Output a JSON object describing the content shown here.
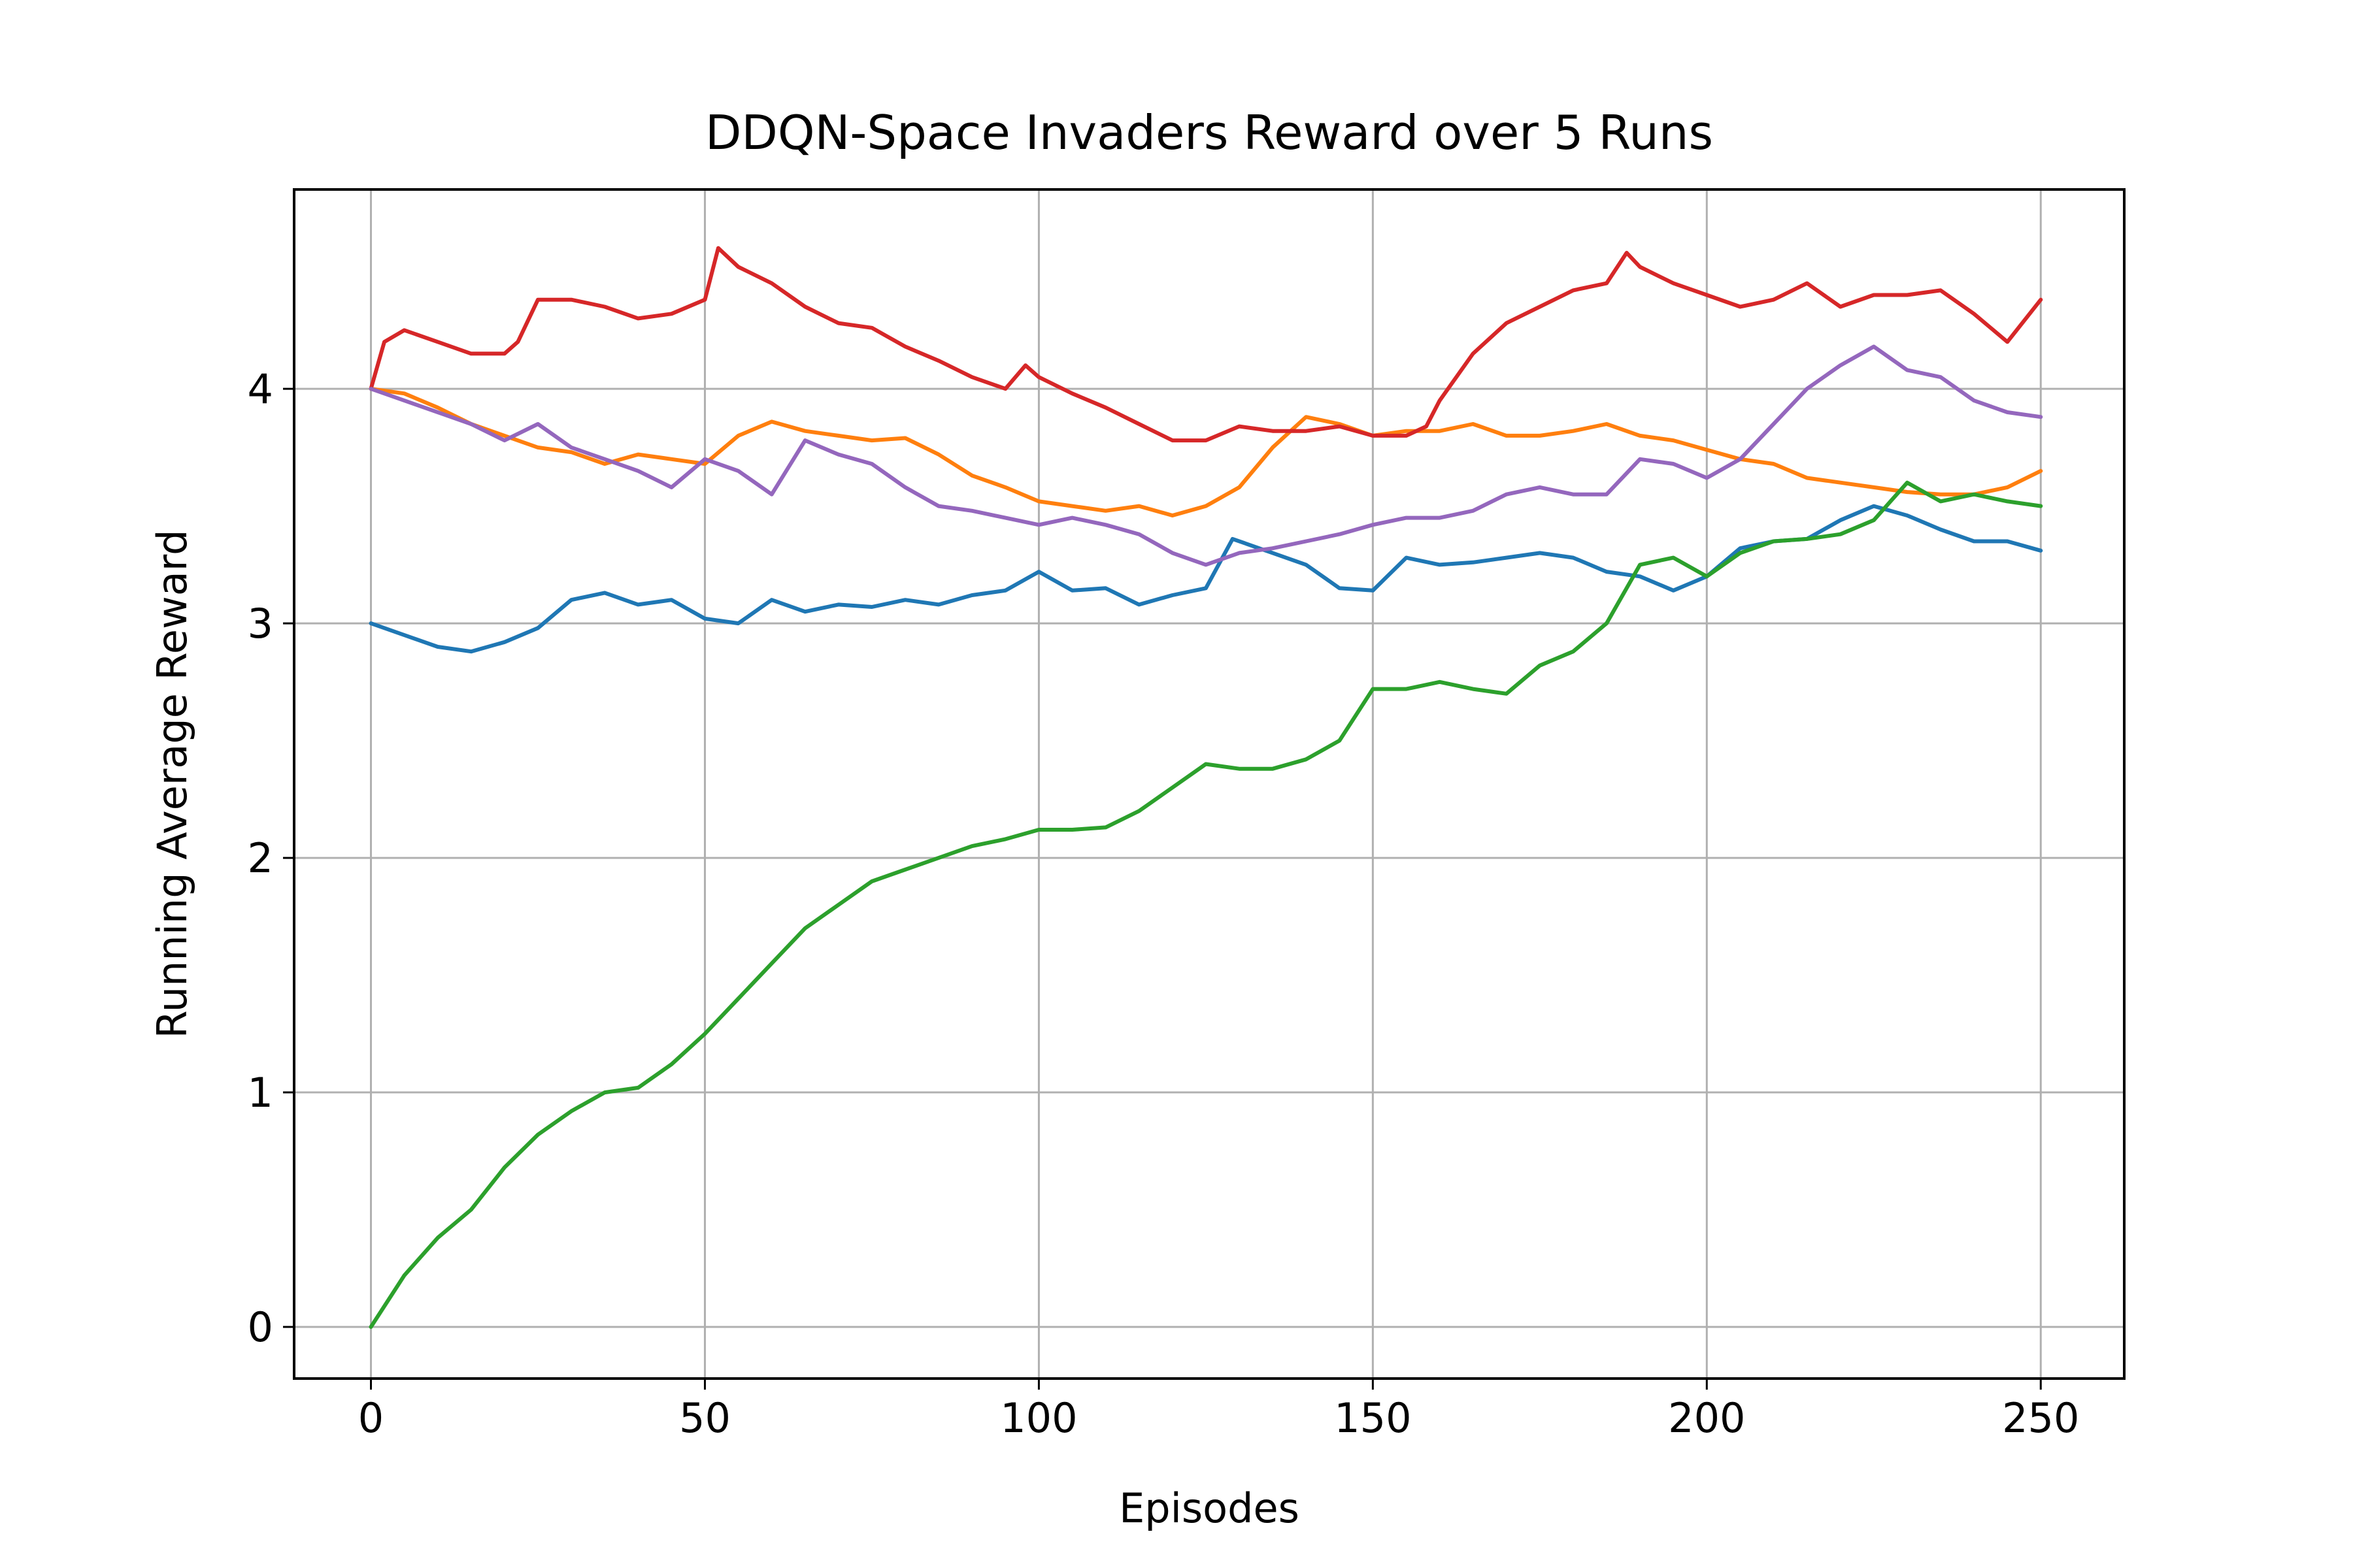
{
  "chart_data": {
    "type": "line",
    "title": "DDQN-Space Invaders Reward over 5 Runs",
    "xlabel": "Episodes",
    "ylabel": "Running Average Reward",
    "xlim": [
      -11.5,
      262.5
    ],
    "ylim": [
      -0.22,
      4.85
    ],
    "xticks": [
      0,
      50,
      100,
      150,
      200,
      250
    ],
    "yticks": [
      0,
      1,
      2,
      3,
      4
    ],
    "grid": true,
    "legend": "none",
    "series": [
      {
        "color": "#1f77b4",
        "x": [
          0,
          5,
          10,
          15,
          20,
          25,
          30,
          35,
          40,
          45,
          50,
          55,
          60,
          65,
          70,
          75,
          80,
          85,
          90,
          95,
          100,
          105,
          110,
          115,
          120,
          125,
          129,
          135,
          140,
          145,
          150,
          155,
          160,
          165,
          170,
          175,
          180,
          185,
          190,
          195,
          200,
          205,
          210,
          215,
          220,
          225,
          230,
          235,
          240,
          245,
          250
        ],
        "y": [
          3.0,
          2.95,
          2.9,
          2.88,
          2.92,
          2.98,
          3.1,
          3.13,
          3.08,
          3.1,
          3.02,
          3.0,
          3.1,
          3.05,
          3.08,
          3.07,
          3.1,
          3.08,
          3.12,
          3.14,
          3.22,
          3.14,
          3.15,
          3.08,
          3.12,
          3.15,
          3.36,
          3.3,
          3.25,
          3.15,
          3.14,
          3.28,
          3.25,
          3.26,
          3.28,
          3.3,
          3.28,
          3.22,
          3.2,
          3.14,
          3.2,
          3.32,
          3.35,
          3.36,
          3.44,
          3.5,
          3.46,
          3.4,
          3.35,
          3.35,
          3.31
        ]
      },
      {
        "color": "#ff7f0e",
        "x": [
          0,
          5,
          10,
          15,
          20,
          25,
          30,
          35,
          40,
          45,
          50,
          55,
          60,
          65,
          70,
          75,
          80,
          85,
          90,
          95,
          100,
          105,
          110,
          115,
          120,
          125,
          130,
          135,
          140,
          145,
          150,
          155,
          160,
          165,
          170,
          175,
          180,
          185,
          190,
          195,
          200,
          205,
          210,
          215,
          220,
          225,
          230,
          235,
          240,
          245,
          250
        ],
        "y": [
          4.0,
          3.98,
          3.92,
          3.85,
          3.8,
          3.75,
          3.73,
          3.68,
          3.72,
          3.7,
          3.68,
          3.8,
          3.86,
          3.82,
          3.8,
          3.78,
          3.79,
          3.72,
          3.63,
          3.58,
          3.52,
          3.5,
          3.48,
          3.5,
          3.46,
          3.5,
          3.58,
          3.75,
          3.88,
          3.85,
          3.8,
          3.82,
          3.82,
          3.85,
          3.8,
          3.8,
          3.82,
          3.85,
          3.8,
          3.78,
          3.74,
          3.7,
          3.68,
          3.62,
          3.6,
          3.58,
          3.56,
          3.55,
          3.55,
          3.58,
          3.65
        ]
      },
      {
        "color": "#2ca02c",
        "x": [
          0,
          5,
          10,
          15,
          20,
          25,
          30,
          35,
          40,
          45,
          50,
          55,
          60,
          65,
          70,
          75,
          80,
          85,
          90,
          95,
          100,
          105,
          110,
          115,
          120,
          125,
          130,
          135,
          140,
          145,
          150,
          155,
          160,
          165,
          170,
          175,
          180,
          185,
          190,
          195,
          200,
          205,
          210,
          215,
          220,
          225,
          230,
          235,
          240,
          245,
          250
        ],
        "y": [
          0.0,
          0.22,
          0.38,
          0.5,
          0.68,
          0.82,
          0.92,
          1.0,
          1.02,
          1.12,
          1.25,
          1.4,
          1.55,
          1.7,
          1.8,
          1.9,
          1.95,
          2.0,
          2.05,
          2.08,
          2.12,
          2.12,
          2.13,
          2.2,
          2.3,
          2.4,
          2.38,
          2.38,
          2.42,
          2.5,
          2.72,
          2.72,
          2.75,
          2.72,
          2.7,
          2.82,
          2.88,
          3.0,
          3.25,
          3.28,
          3.2,
          3.3,
          3.35,
          3.36,
          3.38,
          3.44,
          3.6,
          3.52,
          3.55,
          3.52,
          3.5
        ]
      },
      {
        "color": "#d62728",
        "x": [
          0,
          2,
          5,
          10,
          15,
          20,
          22,
          25,
          30,
          35,
          40,
          45,
          50,
          52,
          55,
          60,
          65,
          70,
          75,
          80,
          85,
          90,
          95,
          98,
          100,
          105,
          110,
          115,
          120,
          125,
          130,
          135,
          140,
          145,
          150,
          155,
          158,
          160,
          165,
          170,
          175,
          180,
          185,
          188,
          190,
          195,
          200,
          205,
          210,
          215,
          220,
          225,
          230,
          235,
          240,
          245,
          250
        ],
        "y": [
          4.0,
          4.2,
          4.25,
          4.2,
          4.15,
          4.15,
          4.2,
          4.38,
          4.38,
          4.35,
          4.3,
          4.32,
          4.38,
          4.6,
          4.52,
          4.45,
          4.35,
          4.28,
          4.26,
          4.18,
          4.12,
          4.05,
          4.0,
          4.1,
          4.05,
          3.98,
          3.92,
          3.85,
          3.78,
          3.78,
          3.84,
          3.82,
          3.82,
          3.84,
          3.8,
          3.8,
          3.84,
          3.95,
          4.15,
          4.28,
          4.35,
          4.42,
          4.45,
          4.58,
          4.52,
          4.45,
          4.4,
          4.35,
          4.38,
          4.45,
          4.35,
          4.4,
          4.4,
          4.42,
          4.32,
          4.2,
          4.38
        ]
      },
      {
        "color": "#9467bd",
        "x": [
          0,
          5,
          10,
          15,
          20,
          25,
          30,
          35,
          40,
          45,
          50,
          55,
          60,
          65,
          70,
          75,
          80,
          85,
          90,
          95,
          100,
          105,
          110,
          115,
          120,
          125,
          130,
          135,
          140,
          145,
          150,
          155,
          160,
          165,
          170,
          175,
          180,
          185,
          190,
          195,
          200,
          205,
          210,
          215,
          220,
          225,
          230,
          235,
          240,
          245,
          250
        ],
        "y": [
          4.0,
          3.95,
          3.9,
          3.85,
          3.78,
          3.85,
          3.75,
          3.7,
          3.65,
          3.58,
          3.7,
          3.65,
          3.55,
          3.78,
          3.72,
          3.68,
          3.58,
          3.5,
          3.48,
          3.45,
          3.42,
          3.45,
          3.42,
          3.38,
          3.3,
          3.25,
          3.3,
          3.32,
          3.35,
          3.38,
          3.42,
          3.45,
          3.45,
          3.48,
          3.55,
          3.58,
          3.55,
          3.55,
          3.7,
          3.68,
          3.62,
          3.7,
          3.85,
          4.0,
          4.1,
          4.18,
          4.08,
          4.05,
          3.95,
          3.9,
          3.88
        ]
      }
    ]
  }
}
